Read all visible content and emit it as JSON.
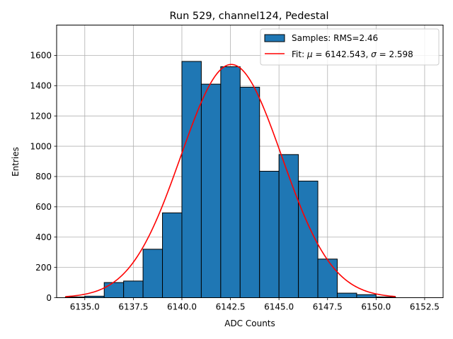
{
  "chart_data": {
    "type": "bar",
    "title": "Run 529, channel124, Pedestal",
    "xlabel": "ADC Counts",
    "ylabel": "Entries",
    "xlim": [
      6133.55,
      6153.45
    ],
    "ylim": [
      0,
      1800
    ],
    "x_ticks": [
      6135.0,
      6137.5,
      6140.0,
      6142.5,
      6145.0,
      6147.5,
      6150.0,
      6152.5
    ],
    "x_tick_labels": [
      "6135.0",
      "6137.5",
      "6140.0",
      "6142.5",
      "6145.0",
      "6147.5",
      "6150.0",
      "6152.5"
    ],
    "y_ticks": [
      0,
      200,
      400,
      600,
      800,
      1000,
      1200,
      1400,
      1600
    ],
    "y_tick_labels": [
      "0",
      "200",
      "400",
      "600",
      "800",
      "1000",
      "1200",
      "1400",
      "1600"
    ],
    "grid": true,
    "legend_position": "top-right",
    "histogram": {
      "name": "Samples: RMS=2.46",
      "color": "#1f77b4",
      "edge_color": "#000000",
      "bin_edges": [
        6134,
        6135,
        6136,
        6137,
        6138,
        6139,
        6140,
        6141,
        6142,
        6143,
        6144,
        6145,
        6146,
        6147,
        6148,
        6149,
        6150,
        6151
      ],
      "counts": [
        5,
        10,
        100,
        110,
        320,
        560,
        1560,
        1410,
        1525,
        1390,
        835,
        945,
        770,
        255,
        30,
        20,
        5
      ]
    },
    "fit": {
      "name_prefix": "Fit: ",
      "mu_symbol": "μ",
      "mu_text": " = 6142.543, ",
      "sigma_symbol": "σ",
      "sigma_text": " = 2.598",
      "color": "#ff0000",
      "mu": 6142.543,
      "sigma": 2.598,
      "amplitude": 1540,
      "x_range": [
        6134,
        6151
      ]
    }
  }
}
